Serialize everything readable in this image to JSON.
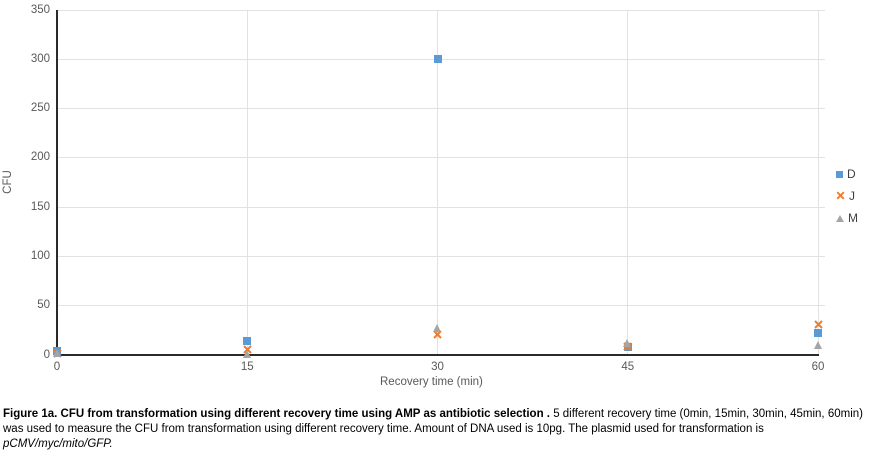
{
  "chart_data": {
    "type": "scatter",
    "title": "",
    "xlabel": "Recovery time (min)",
    "ylabel": "CFU",
    "xlim": [
      0,
      60
    ],
    "ylim": [
      0,
      350
    ],
    "xticks": [
      0,
      15,
      30,
      45,
      60
    ],
    "yticks": [
      0,
      50,
      100,
      150,
      200,
      250,
      300,
      350
    ],
    "x": [
      0,
      15,
      30,
      45,
      60
    ],
    "series": [
      {
        "name": "D",
        "marker": "square",
        "color": "#5B9BD5",
        "values": [
          4,
          14,
          300,
          8,
          22
        ]
      },
      {
        "name": "J",
        "marker": "x",
        "color": "#ED7D31",
        "values": [
          6,
          10,
          25,
          13,
          35
        ]
      },
      {
        "name": "M",
        "marker": "triangle",
        "color": "#A5A5A5",
        "values": [
          2,
          1,
          27,
          12,
          10
        ]
      }
    ],
    "grid": true,
    "legend_position": "right"
  },
  "caption": {
    "bold": "Figure 1a. CFU from transformation using different recovery time using AMP as antibiotic selection .",
    "normal": " 5 different recovery time (0min, 15min, 30min, 45min, 60min) was used to measure the CFU from transformation using different recovery time. Amount of DNA used is 10pg. The plasmid used for transformation is ",
    "italic": "pCMV/myc/mito/GFP."
  },
  "colors": {
    "gridline": "#e2e2e2",
    "axis_line": "#2a2a2a",
    "tick_label": "#595959",
    "legend_label": "#404040"
  }
}
